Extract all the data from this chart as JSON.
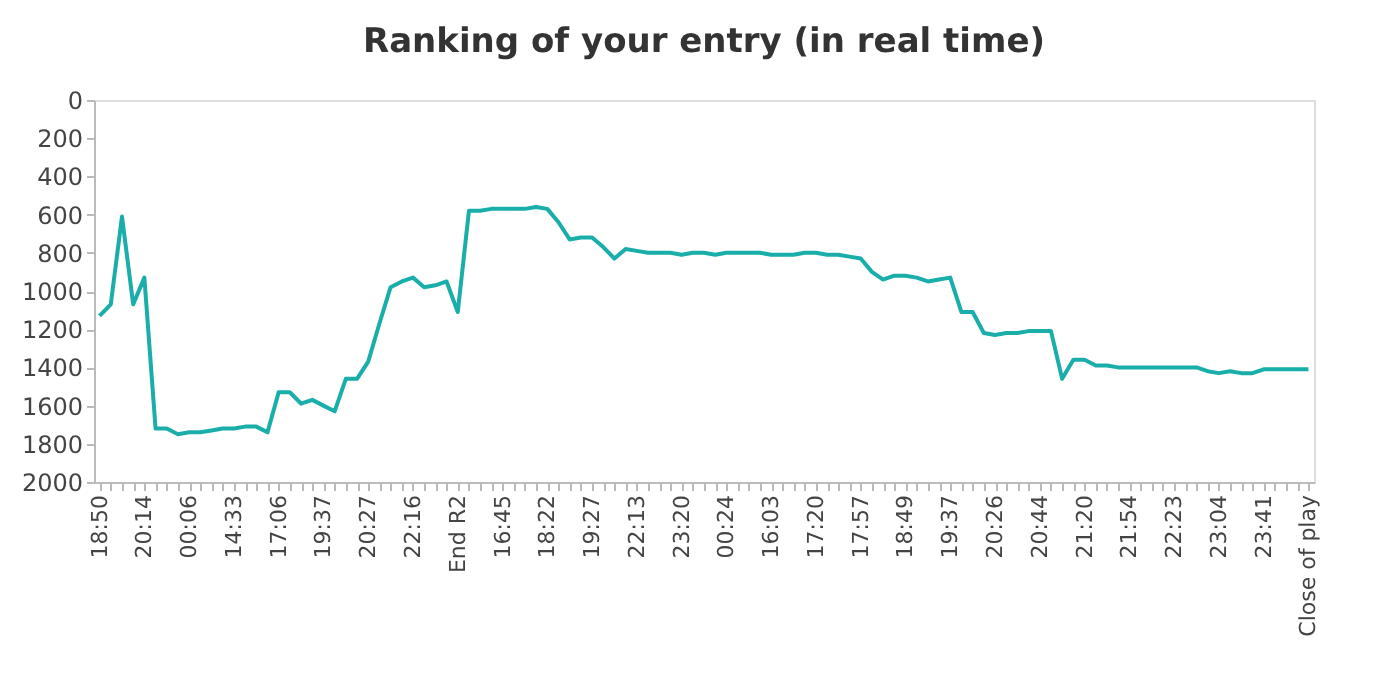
{
  "chart_data": {
    "type": "line",
    "title": "Ranking of your entry (in real time)",
    "categories": [
      "18:50",
      null,
      null,
      null,
      "20:14",
      null,
      null,
      null,
      "00:06",
      null,
      null,
      null,
      "14:33",
      null,
      null,
      null,
      "17:06",
      null,
      null,
      null,
      "19:37",
      null,
      null,
      null,
      "20:27",
      null,
      null,
      null,
      "22:16",
      null,
      null,
      null,
      "End R2",
      null,
      null,
      null,
      "16:45",
      null,
      null,
      null,
      "18:22",
      null,
      null,
      null,
      "19:27",
      null,
      null,
      null,
      "22:13",
      null,
      null,
      null,
      "23:20",
      null,
      null,
      null,
      "00:24",
      null,
      null,
      null,
      "16:03",
      null,
      null,
      null,
      "17:20",
      null,
      null,
      null,
      "17:57",
      null,
      null,
      null,
      "18:49",
      null,
      null,
      null,
      "19:37",
      null,
      null,
      null,
      "20:26",
      null,
      null,
      null,
      "20:44",
      null,
      null,
      null,
      "21:20",
      null,
      null,
      null,
      "21:54",
      null,
      null,
      null,
      "22:23",
      null,
      null,
      null,
      "23:04",
      null,
      null,
      null,
      "23:41",
      null,
      null,
      null,
      "Close of play"
    ],
    "series": [
      {
        "color": "#1aaeaa",
        "values": [
          1130,
          1070,
          610,
          1070,
          930,
          1720,
          1720,
          1750,
          1740,
          1740,
          1730,
          1720,
          1720,
          1710,
          1710,
          1740,
          1530,
          1530,
          1590,
          1570,
          1600,
          1630,
          1460,
          1460,
          1370,
          1170,
          980,
          950,
          930,
          980,
          970,
          950,
          1110,
          580,
          580,
          570,
          570,
          570,
          570,
          560,
          570,
          640,
          730,
          720,
          720,
          770,
          830,
          780,
          790,
          800,
          800,
          800,
          810,
          800,
          800,
          810,
          800,
          800,
          800,
          800,
          810,
          810,
          810,
          800,
          800,
          810,
          810,
          820,
          830,
          900,
          940,
          920,
          920,
          930,
          950,
          940,
          930,
          1110,
          1110,
          1220,
          1230,
          1220,
          1220,
          1210,
          1210,
          1210,
          1460,
          1360,
          1360,
          1390,
          1390,
          1400,
          1400,
          1400,
          1400,
          1400,
          1400,
          1400,
          1400,
          1420,
          1430,
          1420,
          1430,
          1430,
          1410,
          1410,
          1410,
          1410,
          1410
        ]
      }
    ],
    "ylim": [
      2000,
      0
    ],
    "yticks": [
      0,
      200,
      400,
      600,
      800,
      1000,
      1200,
      1400,
      1600,
      1800,
      2000
    ],
    "grid": false,
    "marker": "none",
    "line_style": "solid"
  }
}
